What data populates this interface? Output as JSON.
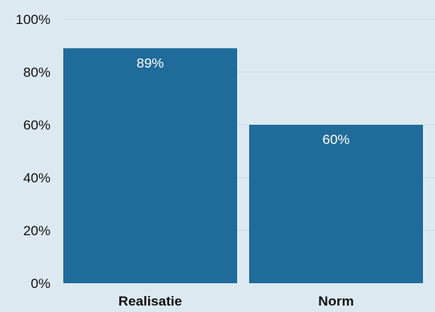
{
  "chart_data": {
    "type": "bar",
    "categories": [
      "Realisatie",
      "Norm"
    ],
    "values": [
      89,
      60
    ],
    "data_labels": [
      "89%",
      "60%"
    ],
    "title": "",
    "xlabel": "",
    "ylabel": "",
    "ylim": [
      0,
      100
    ],
    "y_ticks": [
      0,
      20,
      40,
      60,
      80,
      100
    ],
    "y_tick_labels": [
      "0%",
      "20%",
      "40%",
      "60%",
      "80%",
      "100%"
    ],
    "grid": true,
    "legend": "none",
    "colors": {
      "bar": "#1f6b9a",
      "background": "#dde9f1",
      "grid": "#c9dbe7"
    }
  }
}
